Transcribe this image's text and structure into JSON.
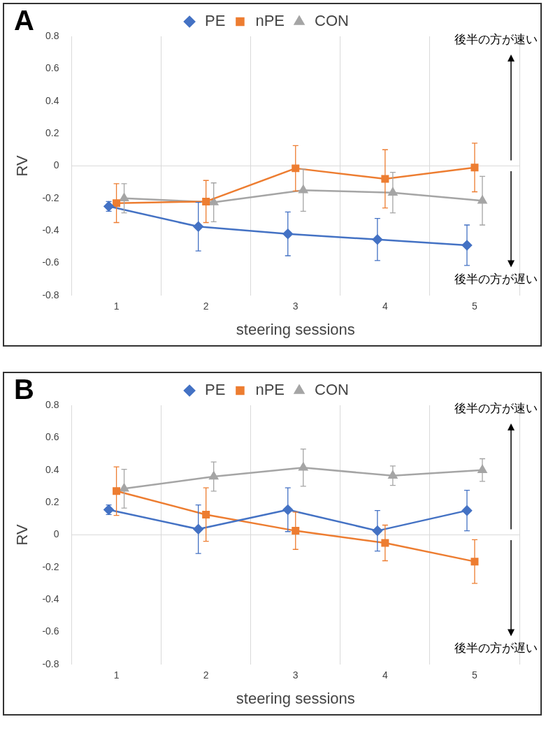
{
  "chart_data": [
    {
      "type": "line",
      "title": "A",
      "xlabel": "steering sessions",
      "ylabel": "RV",
      "categories": [
        "1",
        "2",
        "3",
        "4",
        "5"
      ],
      "ylim": [
        -0.8,
        0.8
      ],
      "yticks": [
        -0.8,
        -0.6,
        -0.4,
        -0.2,
        0,
        0.2,
        0.4,
        0.6,
        0.8
      ],
      "grid": "x",
      "ref_lines": [
        {
          "axis": "y",
          "value": 0,
          "color": "#d9d9d9"
        }
      ],
      "legend": "top",
      "annotations": [
        "後半の方が速い",
        "後半の方が遅い"
      ],
      "series": [
        {
          "name": "PE",
          "color": "#4472c4",
          "marker": "diamond",
          "values": [
            -0.25,
            -0.375,
            -0.42,
            -0.455,
            -0.49
          ],
          "errors": [
            0.03,
            0.15,
            0.135,
            0.13,
            0.125
          ]
        },
        {
          "name": "nPE",
          "color": "#ed7d31",
          "marker": "square",
          "values": [
            -0.23,
            -0.22,
            -0.015,
            -0.08,
            -0.01
          ],
          "errors": [
            0.12,
            0.13,
            0.14,
            0.18,
            0.15
          ]
        },
        {
          "name": "CON",
          "color": "#a5a5a5",
          "marker": "triangle",
          "values": [
            -0.2,
            -0.225,
            -0.15,
            -0.165,
            -0.215
          ],
          "errors": [
            0.09,
            0.12,
            0.13,
            0.125,
            0.15
          ]
        }
      ]
    },
    {
      "type": "line",
      "title": "B",
      "xlabel": "steering sessions",
      "ylabel": "RV",
      "categories": [
        "1",
        "2",
        "3",
        "4",
        "5"
      ],
      "ylim": [
        -0.8,
        0.8
      ],
      "yticks": [
        -0.8,
        -0.6,
        -0.4,
        -0.2,
        0,
        0.2,
        0.4,
        0.6,
        0.8
      ],
      "grid": "x",
      "ref_lines": [
        {
          "axis": "y",
          "value": 0,
          "color": "#d9d9d9"
        }
      ],
      "legend": "top",
      "annotations": [
        "後半の方が速い",
        "後半の方が遅い"
      ],
      "series": [
        {
          "name": "PE",
          "color": "#4472c4",
          "marker": "diamond",
          "values": [
            0.155,
            0.035,
            0.155,
            0.025,
            0.15
          ],
          "errors": [
            0.03,
            0.15,
            0.135,
            0.125,
            0.125
          ]
        },
        {
          "name": "nPE",
          "color": "#ed7d31",
          "marker": "square",
          "values": [
            0.27,
            0.125,
            0.025,
            -0.05,
            -0.165
          ],
          "errors": [
            0.15,
            0.165,
            0.115,
            0.11,
            0.135
          ]
        },
        {
          "name": "CON",
          "color": "#a5a5a5",
          "marker": "triangle",
          "values": [
            0.285,
            0.36,
            0.415,
            0.365,
            0.4
          ],
          "errors": [
            0.12,
            0.09,
            0.115,
            0.06,
            0.07
          ]
        }
      ]
    }
  ]
}
